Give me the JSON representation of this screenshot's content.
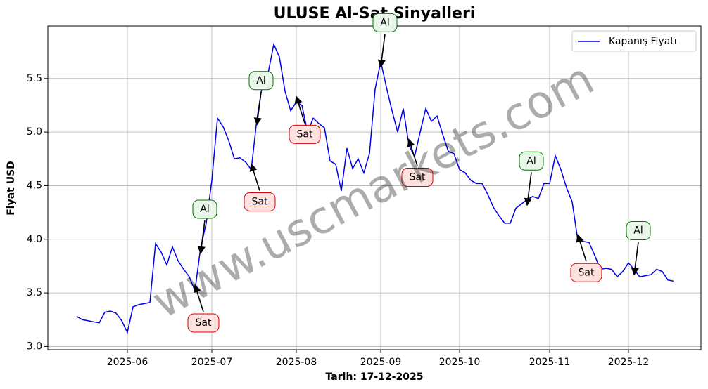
{
  "chart_data": {
    "type": "line",
    "title": "ULUSE Al-Sat Sinyalleri",
    "x_label": "Tarih: 17-12-2025",
    "y_label": "Fiyat USD",
    "watermark": "www.uscmarkets.com",
    "categories": [
      null,
      null,
      null,
      null,
      null,
      null,
      null,
      null,
      null,
      "2025-06",
      null,
      null,
      null,
      null,
      null,
      null,
      null,
      null,
      null,
      null,
      null,
      null,
      null,
      null,
      "2025-07",
      null,
      null,
      null,
      null,
      null,
      null,
      null,
      null,
      null,
      null,
      null,
      null,
      null,
      null,
      "2025-08",
      null,
      null,
      null,
      null,
      null,
      null,
      null,
      null,
      null,
      null,
      null,
      null,
      null,
      null,
      "2025-09",
      null,
      null,
      null,
      null,
      null,
      null,
      null,
      null,
      null,
      null,
      null,
      null,
      null,
      "2025-10",
      null,
      null,
      null,
      null,
      null,
      null,
      null,
      null,
      null,
      null,
      null,
      null,
      null,
      null,
      null,
      "2025-11",
      null,
      null,
      null,
      null,
      null,
      null,
      null,
      null,
      null,
      null,
      null,
      null,
      null,
      "2025-12",
      null,
      null,
      null,
      null,
      null,
      null,
      null,
      null
    ],
    "series": [
      {
        "name": "Kapanış Fiyatı",
        "color": "#0000ee",
        "values": [
          3.28,
          3.25,
          3.24,
          3.23,
          3.22,
          3.32,
          3.33,
          3.31,
          3.24,
          3.13,
          3.37,
          3.39,
          3.4,
          3.41,
          3.96,
          3.88,
          3.76,
          3.93,
          3.8,
          3.72,
          3.65,
          3.52,
          3.92,
          4.15,
          4.55,
          5.13,
          5.05,
          4.92,
          4.75,
          4.76,
          4.72,
          4.65,
          5.12,
          5.45,
          5.55,
          5.82,
          5.7,
          5.38,
          5.2,
          5.28,
          5.25,
          5.0,
          5.13,
          5.08,
          5.04,
          4.73,
          4.7,
          4.45,
          4.85,
          4.66,
          4.75,
          4.62,
          4.8,
          5.4,
          5.66,
          5.42,
          5.2,
          5.0,
          5.22,
          4.88,
          4.77,
          5.0,
          5.22,
          5.1,
          5.15,
          4.98,
          4.82,
          4.8,
          4.65,
          4.62,
          4.55,
          4.52,
          4.52,
          4.42,
          4.3,
          4.22,
          4.15,
          4.15,
          4.29,
          4.33,
          4.37,
          4.4,
          4.38,
          4.52,
          4.52,
          4.78,
          4.65,
          4.48,
          4.35,
          3.99,
          3.98,
          3.97,
          3.85,
          3.72,
          3.73,
          3.72,
          3.65,
          3.7,
          3.78,
          3.72,
          3.65,
          3.66,
          3.67,
          3.72,
          3.7,
          3.62,
          3.61
        ]
      }
    ],
    "signals": [
      {
        "label": "Al",
        "point": 22
      },
      {
        "label": "Al",
        "point": 32
      },
      {
        "label": "Al",
        "point": 54
      },
      {
        "label": "Al",
        "point": 80
      },
      {
        "label": "Al",
        "point": 99
      },
      {
        "label": "Sat",
        "point": 21
      },
      {
        "label": "Sat",
        "point": 31
      },
      {
        "label": "Sat",
        "point": 39
      },
      {
        "label": "Sat",
        "point": 59
      },
      {
        "label": "Sat",
        "point": 89
      }
    ],
    "ylim": [
      2.97,
      5.99
    ],
    "yticks": [
      {
        "value": 3,
        "label": "3.0"
      },
      3.5,
      {
        "value": 4,
        "label": "4.0"
      },
      4.5,
      {
        "value": 5,
        "label": "5.0"
      },
      5.5
    ],
    "grid": true,
    "legend": "upper right"
  }
}
